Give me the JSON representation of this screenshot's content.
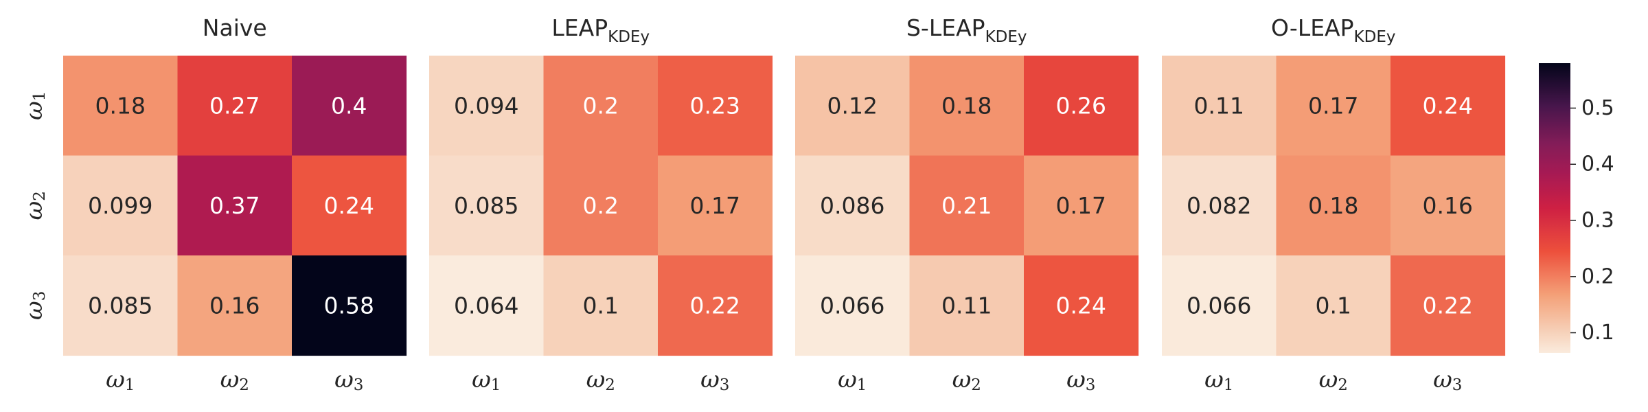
{
  "chart_data": {
    "type": "heatmap",
    "panels": [
      {
        "title": "Naive",
        "title_subscript": "",
        "rows": [
          "ω1",
          "ω2",
          "ω3"
        ],
        "columns": [
          "ω1",
          "ω2",
          "ω3"
        ],
        "values": [
          [
            0.18,
            0.27,
            0.4
          ],
          [
            0.099,
            0.37,
            0.24
          ],
          [
            0.085,
            0.16,
            0.58
          ]
        ],
        "value_labels": [
          [
            "0.18",
            "0.27",
            "0.4"
          ],
          [
            "0.099",
            "0.37",
            "0.24"
          ],
          [
            "0.085",
            "0.16",
            "0.58"
          ]
        ]
      },
      {
        "title": "LEAP",
        "title_subscript": "KDEy",
        "rows": [
          "ω1",
          "ω2",
          "ω3"
        ],
        "columns": [
          "ω1",
          "ω2",
          "ω3"
        ],
        "values": [
          [
            0.094,
            0.2,
            0.23
          ],
          [
            0.085,
            0.2,
            0.17
          ],
          [
            0.064,
            0.1,
            0.22
          ]
        ],
        "value_labels": [
          [
            "0.094",
            "0.2",
            "0.23"
          ],
          [
            "0.085",
            "0.2",
            "0.17"
          ],
          [
            "0.064",
            "0.1",
            "0.22"
          ]
        ]
      },
      {
        "title": "S-LEAP",
        "title_subscript": "KDEy",
        "rows": [
          "ω1",
          "ω2",
          "ω3"
        ],
        "columns": [
          "ω1",
          "ω2",
          "ω3"
        ],
        "values": [
          [
            0.12,
            0.18,
            0.26
          ],
          [
            0.086,
            0.21,
            0.17
          ],
          [
            0.066,
            0.11,
            0.24
          ]
        ],
        "value_labels": [
          [
            "0.12",
            "0.18",
            "0.26"
          ],
          [
            "0.086",
            "0.21",
            "0.17"
          ],
          [
            "0.066",
            "0.11",
            "0.24"
          ]
        ]
      },
      {
        "title": "O-LEAP",
        "title_subscript": "KDEy",
        "rows": [
          "ω1",
          "ω2",
          "ω3"
        ],
        "columns": [
          "ω1",
          "ω2",
          "ω3"
        ],
        "values": [
          [
            0.11,
            0.17,
            0.24
          ],
          [
            0.082,
            0.18,
            0.16
          ],
          [
            0.066,
            0.1,
            0.22
          ]
        ],
        "value_labels": [
          [
            "0.11",
            "0.17",
            "0.24"
          ],
          [
            "0.082",
            "0.18",
            "0.16"
          ],
          [
            "0.066",
            "0.1",
            "0.22"
          ]
        ]
      }
    ],
    "colorbar": {
      "colormap": "rocket_r",
      "range": [
        0.064,
        0.58
      ],
      "ticks": [
        0.1,
        0.2,
        0.3,
        0.4,
        0.5
      ],
      "tick_labels": [
        "0.1",
        "0.2",
        "0.3",
        "0.4",
        "0.5"
      ]
    },
    "grid": false,
    "legend": "colorbar-right"
  }
}
